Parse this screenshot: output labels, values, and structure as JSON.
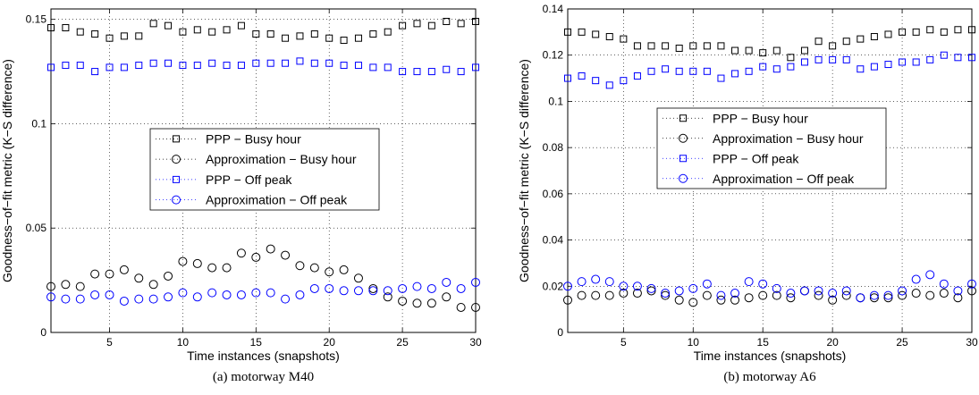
{
  "chart_data": [
    {
      "type": "scatter",
      "caption": "(a) motorway M40",
      "xlabel": "Time instances (snapshots)",
      "ylabel": "Goodness−of−fit metric (K−S difference)",
      "xlim": [
        1,
        30
      ],
      "ylim": [
        0,
        0.155
      ],
      "xticks": [
        5,
        10,
        15,
        20,
        25,
        30
      ],
      "xtick_labels": [
        "5",
        "10",
        "15",
        "20",
        "25",
        "30"
      ],
      "yticks": [
        0,
        0.05,
        0.1,
        0.15
      ],
      "ytick_labels": [
        "0",
        "0.05",
        "0.1",
        "0.15"
      ],
      "grid": true,
      "legend_position": "center",
      "x": [
        1,
        2,
        3,
        4,
        5,
        6,
        7,
        8,
        9,
        10,
        11,
        12,
        13,
        14,
        15,
        16,
        17,
        18,
        19,
        20,
        21,
        22,
        23,
        24,
        25,
        26,
        27,
        28,
        29,
        30
      ],
      "series": [
        {
          "name": "PPP − Busy hour",
          "marker": "square",
          "color": "#000000",
          "values": [
            0.146,
            0.146,
            0.144,
            0.143,
            0.141,
            0.142,
            0.142,
            0.148,
            0.147,
            0.144,
            0.145,
            0.144,
            0.145,
            0.147,
            0.143,
            0.143,
            0.141,
            0.142,
            0.143,
            0.141,
            0.14,
            0.141,
            0.143,
            0.144,
            0.147,
            0.148,
            0.147,
            0.149,
            0.148,
            0.149
          ]
        },
        {
          "name": "Approximation − Busy hour",
          "marker": "circle",
          "color": "#000000",
          "values": [
            0.022,
            0.023,
            0.022,
            0.028,
            0.028,
            0.03,
            0.026,
            0.023,
            0.027,
            0.034,
            0.033,
            0.031,
            0.031,
            0.038,
            0.036,
            0.04,
            0.037,
            0.032,
            0.031,
            0.029,
            0.03,
            0.026,
            0.021,
            0.017,
            0.015,
            0.014,
            0.014,
            0.017,
            0.012,
            0.012
          ]
        },
        {
          "name": "PPP − Off peak",
          "marker": "square",
          "color": "#0000ff",
          "values": [
            0.127,
            0.128,
            0.128,
            0.125,
            0.127,
            0.127,
            0.128,
            0.129,
            0.129,
            0.128,
            0.128,
            0.129,
            0.128,
            0.128,
            0.129,
            0.129,
            0.129,
            0.13,
            0.129,
            0.129,
            0.128,
            0.128,
            0.127,
            0.127,
            0.125,
            0.125,
            0.125,
            0.126,
            0.125,
            0.127
          ]
        },
        {
          "name": "Approximation − Off peak",
          "marker": "circle",
          "color": "#0000ff",
          "values": [
            0.017,
            0.016,
            0.016,
            0.018,
            0.018,
            0.015,
            0.016,
            0.016,
            0.017,
            0.019,
            0.017,
            0.019,
            0.018,
            0.018,
            0.019,
            0.019,
            0.016,
            0.018,
            0.021,
            0.021,
            0.02,
            0.02,
            0.02,
            0.02,
            0.021,
            0.022,
            0.021,
            0.024,
            0.021,
            0.024
          ]
        }
      ]
    },
    {
      "type": "scatter",
      "caption": "(b) motorway A6",
      "xlabel": "Time instances (snapshots)",
      "ylabel": "Goodness−of−fit metric (K−S difference)",
      "xlim": [
        1,
        30
      ],
      "ylim": [
        0,
        0.14
      ],
      "xticks": [
        5,
        10,
        15,
        20,
        25,
        30
      ],
      "xtick_labels": [
        "5",
        "10",
        "15",
        "20",
        "25",
        "30"
      ],
      "yticks": [
        0,
        0.02,
        0.04,
        0.06,
        0.08,
        0.1,
        0.12,
        0.14
      ],
      "ytick_labels": [
        "0",
        "0.02",
        "0.04",
        "0.06",
        "0.08",
        "0.1",
        "0.12",
        "0.14"
      ],
      "grid": true,
      "legend_position": "upper-center",
      "x": [
        1,
        2,
        3,
        4,
        5,
        6,
        7,
        8,
        9,
        10,
        11,
        12,
        13,
        14,
        15,
        16,
        17,
        18,
        19,
        20,
        21,
        22,
        23,
        24,
        25,
        26,
        27,
        28,
        29,
        30
      ],
      "series": [
        {
          "name": "PPP − Busy hour",
          "marker": "square",
          "color": "#000000",
          "values": [
            0.13,
            0.13,
            0.129,
            0.128,
            0.127,
            0.124,
            0.124,
            0.124,
            0.123,
            0.124,
            0.124,
            0.124,
            0.122,
            0.122,
            0.121,
            0.122,
            0.119,
            0.122,
            0.126,
            0.124,
            0.126,
            0.127,
            0.128,
            0.129,
            0.13,
            0.13,
            0.131,
            0.13,
            0.131,
            0.131
          ]
        },
        {
          "name": "Approximation − Busy hour",
          "marker": "circle",
          "color": "#000000",
          "values": [
            0.014,
            0.016,
            0.016,
            0.016,
            0.017,
            0.017,
            0.018,
            0.016,
            0.014,
            0.013,
            0.016,
            0.014,
            0.014,
            0.015,
            0.016,
            0.016,
            0.015,
            0.018,
            0.016,
            0.014,
            0.016,
            0.015,
            0.015,
            0.015,
            0.016,
            0.017,
            0.016,
            0.017,
            0.015,
            0.018
          ]
        },
        {
          "name": "PPP − Off peak",
          "marker": "square",
          "color": "#0000ff",
          "values": [
            0.11,
            0.111,
            0.109,
            0.107,
            0.109,
            0.111,
            0.113,
            0.114,
            0.113,
            0.113,
            0.113,
            0.11,
            0.112,
            0.113,
            0.115,
            0.114,
            0.115,
            0.117,
            0.118,
            0.118,
            0.118,
            0.114,
            0.115,
            0.116,
            0.117,
            0.117,
            0.118,
            0.12,
            0.119,
            0.119
          ]
        },
        {
          "name": "Approximation − Off peak",
          "marker": "circle",
          "color": "#0000ff",
          "values": [
            0.02,
            0.022,
            0.023,
            0.022,
            0.02,
            0.02,
            0.019,
            0.017,
            0.018,
            0.019,
            0.021,
            0.016,
            0.017,
            0.022,
            0.021,
            0.019,
            0.017,
            0.018,
            0.018,
            0.017,
            0.018,
            0.015,
            0.016,
            0.016,
            0.018,
            0.023,
            0.025,
            0.021,
            0.018,
            0.021
          ]
        }
      ]
    }
  ]
}
